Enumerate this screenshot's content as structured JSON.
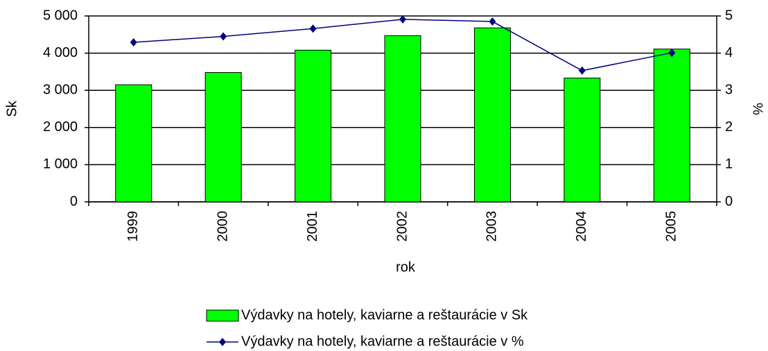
{
  "chart_data": {
    "type": "bar",
    "categories": [
      "1999",
      "2000",
      "2001",
      "2002",
      "2003",
      "2004",
      "2005"
    ],
    "x_label": "rok",
    "y_label": "Sk",
    "y2_label": "%",
    "series": [
      {
        "name": "Výdavky na hotely, kaviarne a reštaurácie v Sk",
        "type": "bar",
        "color": "#00ff00",
        "values": [
          3150,
          3480,
          4080,
          4470,
          4680,
          3330,
          4110
        ]
      },
      {
        "name": "Výdavky na hotely, kaviarne a reštaurácie v %",
        "type": "line",
        "axis": "y2",
        "color": "#000080",
        "values": [
          4.29,
          4.45,
          4.66,
          4.91,
          4.85,
          3.53,
          4.01
        ]
      }
    ],
    "ylim": [
      0,
      5000
    ],
    "yticks": [
      0,
      {
        "value": 1000,
        "label": "1 000"
      },
      {
        "value": 2000,
        "label": "2 000"
      },
      {
        "value": 3000,
        "label": "3 000"
      },
      {
        "value": 4000,
        "label": "4 000"
      },
      {
        "value": 5000,
        "label": "5 000"
      }
    ],
    "y2lim": [
      0,
      5
    ],
    "y2ticks": [
      0,
      1,
      2,
      3,
      4,
      5
    ],
    "grid": true,
    "legend": "bottom"
  }
}
